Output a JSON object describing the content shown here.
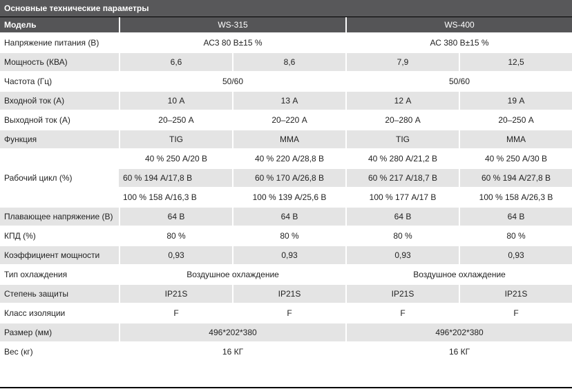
{
  "title": "Основные технические параметры",
  "header": {
    "label": "Модель",
    "models": [
      "WS-315",
      "WS-400"
    ]
  },
  "rows": {
    "voltage": {
      "label": "Напряжение питания (В)",
      "ws315": "АС3 80 В±15 %",
      "ws400": "АС 380 В±15 %"
    },
    "power": {
      "label": "Мощность (КВА)",
      "values": [
        "6,6",
        "8,6",
        "7,9",
        "12,5"
      ]
    },
    "freq": {
      "label": "Частота (Гц)",
      "ws315": "50/60",
      "ws400": "50/60"
    },
    "in_current": {
      "label": "Входной ток (А)",
      "values": [
        "10 А",
        "13 А",
        "12 А",
        "19 А"
      ]
    },
    "out_current": {
      "label": "Выходной ток (А)",
      "values": [
        "20–250 А",
        "20–220 А",
        "20–280 А",
        "20–250 А"
      ]
    },
    "function": {
      "label": "Функция",
      "values": [
        "TIG",
        "MMA",
        "TIG",
        "MMA"
      ]
    },
    "duty": {
      "label": "Рабочий цикл (%)",
      "lines": [
        [
          "40 % 250 А/20 В",
          "40 % 220 А/28,8 В",
          "40 % 280 А/21,2 В",
          "40 % 250 А/30 В"
        ],
        [
          "60 % 194 А/17,8 В",
          "60 % 170 А/26,8 В",
          "60 % 217 А/18,7 В",
          "60 % 194 А/27,8 В"
        ],
        [
          "100 % 158 А/16,3 В",
          "100 % 139 А/25,6 В",
          "100 % 177 А/17 В",
          "100 % 158 А/26,3 В"
        ]
      ]
    },
    "open_voltage": {
      "label": "Плавающее напряжение (В)",
      "values": [
        "64 В",
        "64 В",
        "64 В",
        "64 В"
      ]
    },
    "efficiency": {
      "label": "КПД (%)",
      "values": [
        "80 %",
        "80 %",
        "80 %",
        "80 %"
      ]
    },
    "power_factor": {
      "label": "Коэффициент мощности",
      "values": [
        "0,93",
        "0,93",
        "0,93",
        "0,93"
      ]
    },
    "cooling": {
      "label": "Тип охлаждения",
      "ws315": "Воздушное охлаждение",
      "ws400": "Воздушное охлаждение"
    },
    "protection": {
      "label": "Степень защиты",
      "values": [
        "IP21S",
        "IP21S",
        "IP21S",
        "IP21S"
      ]
    },
    "insulation": {
      "label": "Класс изоляции",
      "values": [
        "F",
        "F",
        "F",
        "F"
      ]
    },
    "size": {
      "label": "Размер (мм)",
      "ws315": "496*202*380",
      "ws400": "496*202*380"
    },
    "weight": {
      "label": "Вес (кг)",
      "ws315": "16 КГ",
      "ws400": "16 КГ"
    }
  }
}
